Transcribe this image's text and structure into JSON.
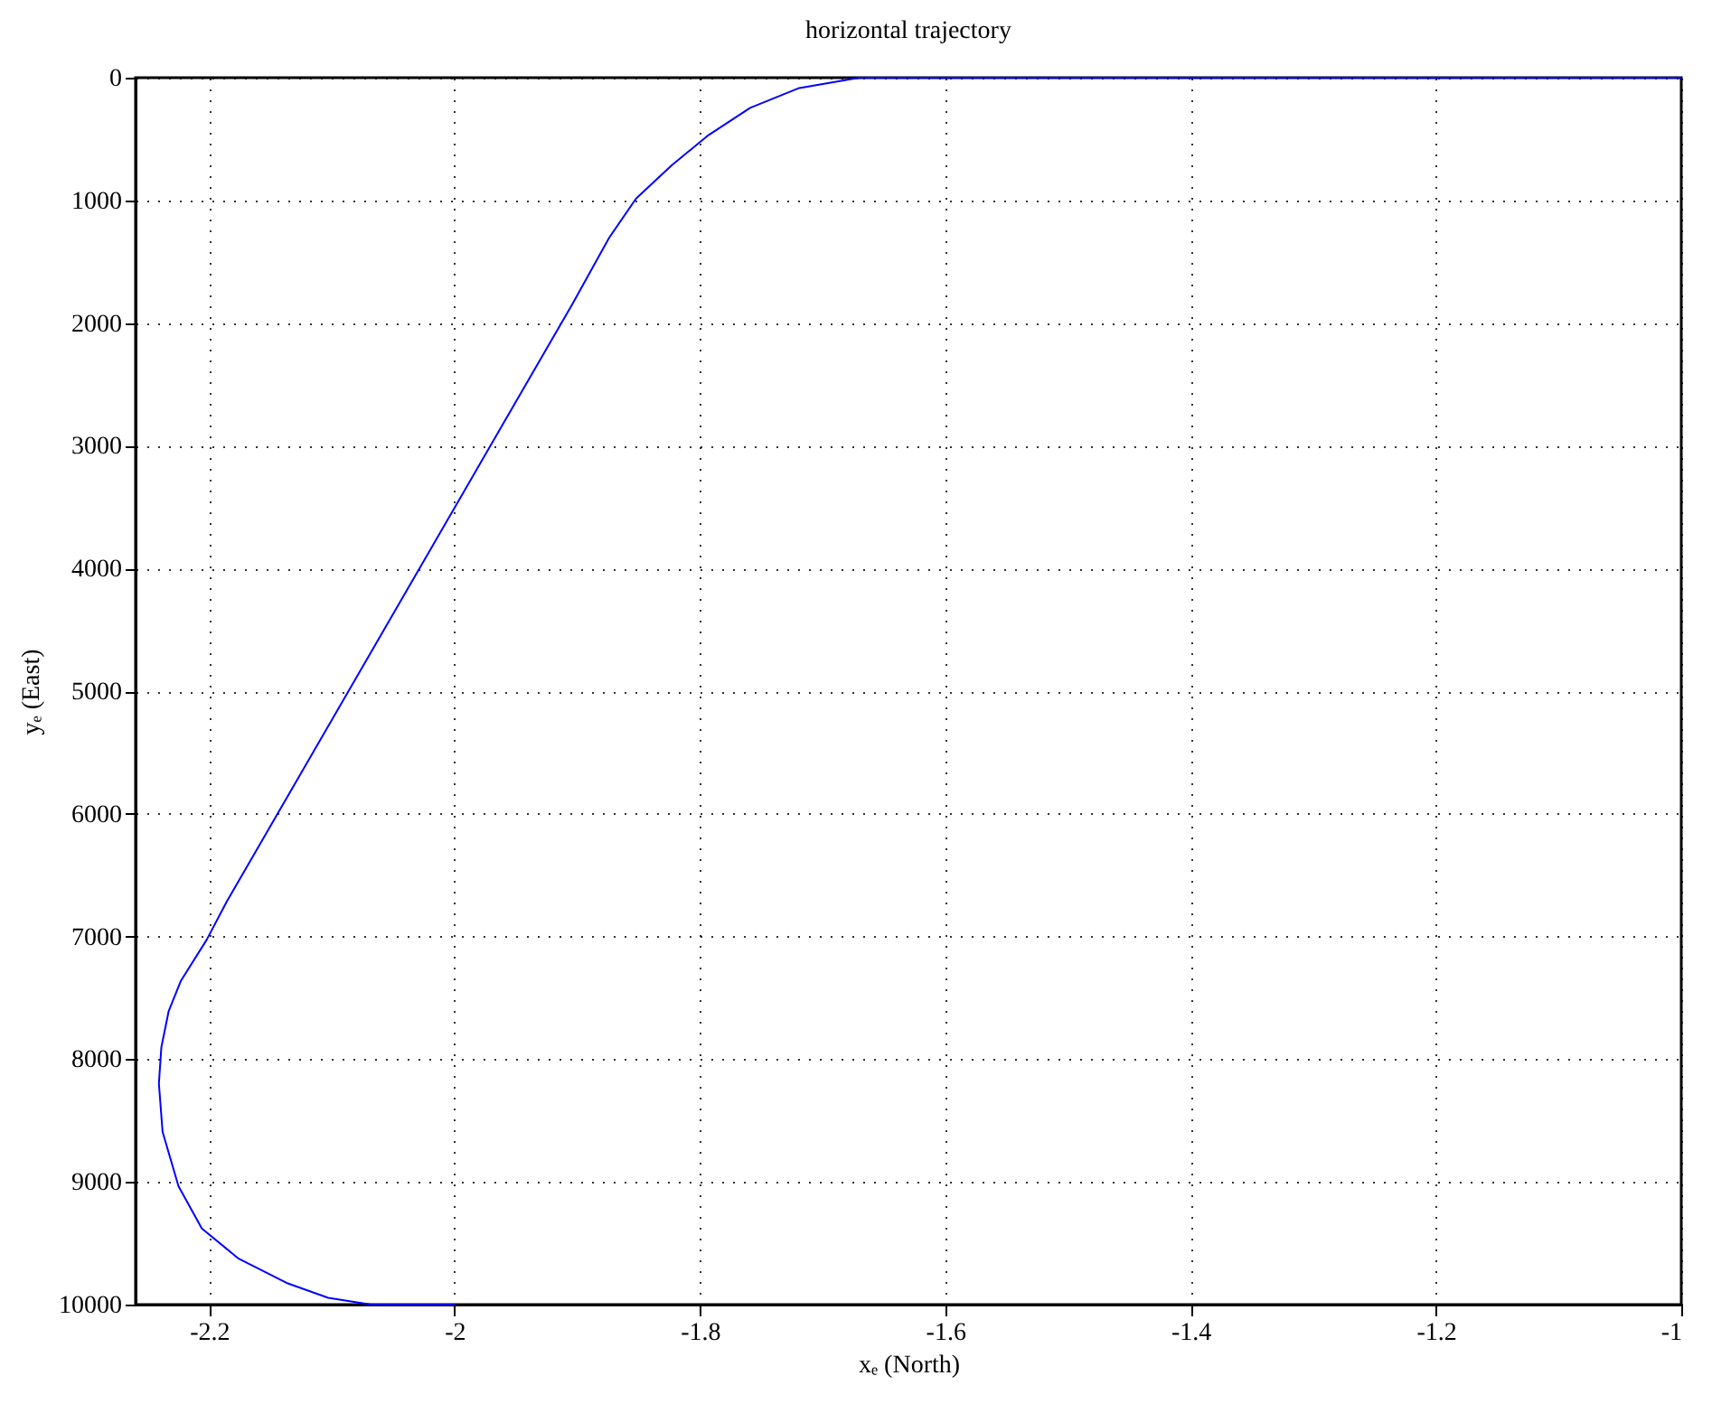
{
  "chart_data": {
    "type": "line",
    "title": "horizontal trajectory",
    "xlabel": "xₑ (North)",
    "ylabel": "yₑ (East)",
    "series": [
      {
        "color": "#0000ff",
        "x": [
          -1.0,
          -1.67,
          -1.719,
          -1.759,
          -1.793,
          -1.823,
          -1.852,
          -1.874,
          -1.904,
          -2.186,
          -2.202,
          -2.223,
          -2.233,
          -2.239,
          -2.241,
          -2.238,
          -2.225,
          -2.206,
          -2.176,
          -2.137,
          -2.103,
          -2.068,
          -2.0
        ],
        "values": [
          0,
          0,
          84,
          246,
          468,
          714,
          985,
          1305,
          1846,
          6721,
          7026,
          7360,
          7607,
          7903,
          8198,
          8592,
          9035,
          9380,
          9626,
          9823,
          9945,
          10000,
          10000
        ]
      }
    ],
    "xlim": [
      -2.26,
      -1.0
    ],
    "xticks": [
      -2.2,
      -2,
      -1.8,
      -1.6,
      -1.4,
      -1.2,
      -1
    ],
    "ylim": [
      10000,
      0
    ],
    "yticks": [
      0,
      1000,
      2000,
      3000,
      4000,
      5000,
      6000,
      7000,
      8000,
      9000,
      10000
    ],
    "grid": true,
    "line_style": "solid"
  }
}
